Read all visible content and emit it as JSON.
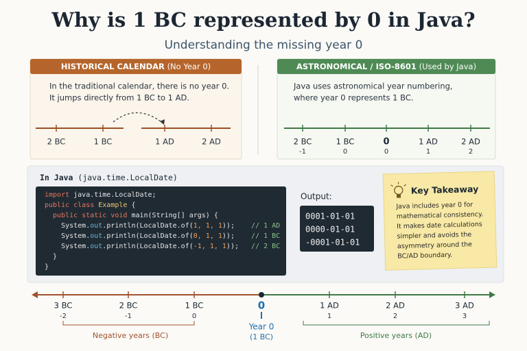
{
  "header": {
    "title": "Why is 1 BC represented by 0 in Java?",
    "subtitle": "Understanding the missing year 0"
  },
  "historical": {
    "heading": "HISTORICAL CALENDAR",
    "heading_note": "(No Year 0)",
    "text": [
      "In the traditional calendar, there is no year 0.",
      "It jumps directly from 1 BC to 1 AD."
    ],
    "ticks": [
      "2 BC",
      "1 BC",
      "1 AD",
      "2 AD"
    ]
  },
  "astronomical": {
    "heading": "ASTRONOMICAL / ISO-8601",
    "heading_note": "(Used by Java)",
    "text": [
      "Java uses astronomical year numbering,",
      "where year 0 represents 1 BC."
    ],
    "ticks": [
      {
        "label": "2 BC",
        "year": -1
      },
      {
        "label": "1 BC",
        "year": 0
      },
      {
        "label": "0",
        "year": 0
      },
      {
        "label": "1 AD",
        "year": 1
      },
      {
        "label": "2 AD",
        "year": 2
      }
    ]
  },
  "java": {
    "heading": "In Java",
    "heading_note": "(java.time.LocalDate)",
    "code": [
      [
        {
          "text": "import",
          "color": "#e8765e"
        },
        {
          "text": " java.time.LocalDate;",
          "color": "#e6e6e6"
        }
      ],
      [
        {
          "text": "public class",
          "color": "#e8765e"
        },
        {
          "text": " Example",
          "color": "#f0c674"
        },
        {
          "text": " {",
          "color": "#e6e6e6"
        }
      ],
      [
        {
          "text": "  public static void",
          "color": "#e8765e"
        },
        {
          "text": " main(String[] args) {",
          "color": "#e6e6e6"
        }
      ],
      [
        {
          "text": "    System.",
          "color": "#e6e6e6"
        },
        {
          "text": "out",
          "color": "#6cb6d9"
        },
        {
          "text": ".println(LocalDate.of(",
          "color": "#e6e6e6"
        },
        {
          "text": "1, 1, 1",
          "color": "#f0a05a"
        },
        {
          "text": "));",
          "color": "#e6e6e6"
        },
        {
          "text": "    // 1 AD",
          "color": "#8bc48a"
        }
      ],
      [
        {
          "text": "    System.",
          "color": "#e6e6e6"
        },
        {
          "text": "out",
          "color": "#6cb6d9"
        },
        {
          "text": ".println(LocalDate.of(",
          "color": "#e6e6e6"
        },
        {
          "text": "0, 1, 1",
          "color": "#f0a05a"
        },
        {
          "text": "));",
          "color": "#e6e6e6"
        },
        {
          "text": "    // 1 BC",
          "color": "#8bc48a"
        }
      ],
      [
        {
          "text": "    System.",
          "color": "#e6e6e6"
        },
        {
          "text": "out",
          "color": "#6cb6d9"
        },
        {
          "text": ".println(LocalDate.of(",
          "color": "#e6e6e6"
        },
        {
          "text": "-1, 1, 1",
          "color": "#f0a05a"
        },
        {
          "text": "));",
          "color": "#e6e6e6"
        },
        {
          "text": "   // 2 BC",
          "color": "#8bc48a"
        }
      ],
      [
        {
          "text": "  }",
          "color": "#e6e6e6"
        }
      ],
      [
        {
          "text": "}",
          "color": "#e6e6e6"
        }
      ]
    ],
    "output_label": "Output:",
    "output": [
      "0001-01-01",
      "0000-01-01",
      "-0001-01-01"
    ],
    "takeaway": {
      "title": "Key Takeaway",
      "text": [
        "Java includes year 0 for",
        "mathematical consistency.",
        "It makes date calculations",
        "simpler and avoids the",
        "asymmetry around the",
        "BC/AD boundary."
      ]
    }
  },
  "timeline": {
    "negative_ticks": [
      {
        "label": "3 BC",
        "year": -2
      },
      {
        "label": "2 BC",
        "year": -1
      },
      {
        "label": "1 BC",
        "year": 0
      }
    ],
    "zero": {
      "value": 0,
      "label": "Year 0",
      "note": "(1 BC)"
    },
    "positive_ticks": [
      {
        "label": "1 AD",
        "year": 1
      },
      {
        "label": "2 AD",
        "year": 2
      },
      {
        "label": "3 AD",
        "year": 3
      }
    ],
    "negative_label": "Negative years (BC)",
    "positive_label": "Positive years (AD)"
  }
}
